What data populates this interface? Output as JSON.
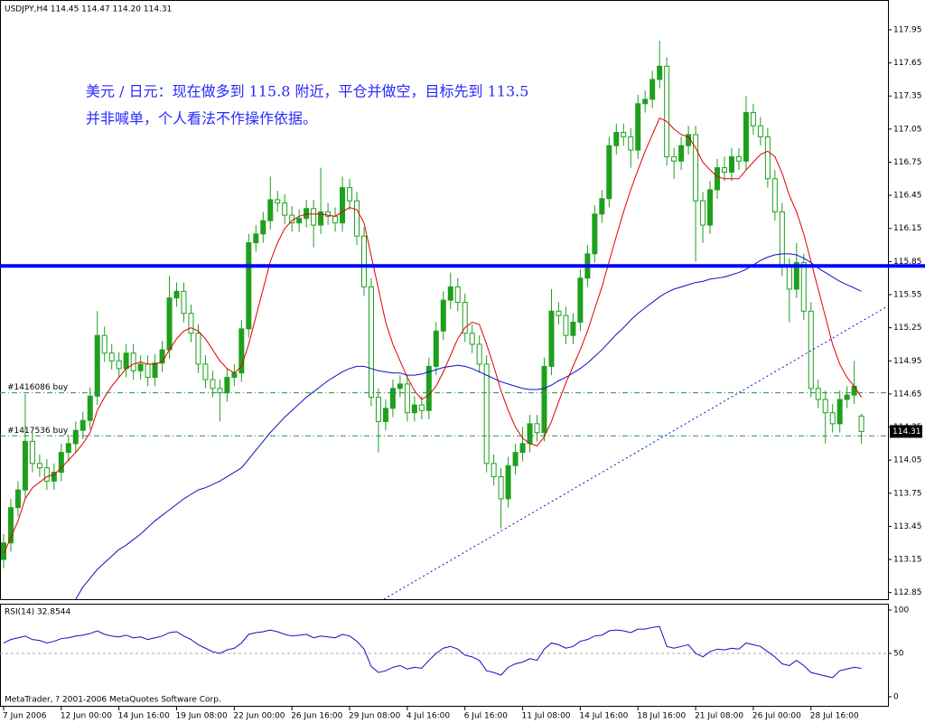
{
  "chart_data": [
    {
      "type": "candlestick",
      "title": "USDJPY,H4  114.45 114.47 114.20 114.31",
      "annotations": [
        "美元 / 日元：现在做多到 115.8 附近，平仓并做空，目标先到 113.5",
        "并非喊单，个人看法不作操作依据。"
      ],
      "categories": [
        "7 Jun 2006",
        null,
        null,
        null,
        null,
        null,
        null,
        null,
        "12 Jun 00:00",
        null,
        null,
        null,
        null,
        null,
        null,
        null,
        "14 Jun 16:00",
        null,
        null,
        null,
        null,
        null,
        null,
        null,
        "19 Jun 08:00",
        null,
        null,
        null,
        null,
        null,
        null,
        null,
        "22 Jun 00:00",
        null,
        null,
        null,
        null,
        null,
        null,
        null,
        "26 Jun 16:00",
        null,
        null,
        null,
        null,
        null,
        null,
        null,
        "29 Jun 08:00",
        null,
        null,
        null,
        null,
        null,
        null,
        null,
        "4 Jul 16:00",
        null,
        null,
        null,
        null,
        null,
        null,
        null,
        "6 Jul 16:00",
        null,
        null,
        null,
        null,
        null,
        null,
        null,
        "11 Jul 08:00",
        null,
        null,
        null,
        null,
        null,
        null,
        null,
        "14 Jul 16:00",
        null,
        null,
        null,
        null,
        null,
        null,
        null,
        "18 Jul 16:00",
        null,
        null,
        null,
        null,
        null,
        null,
        null,
        "21 Jul 08:00",
        null,
        null,
        null,
        null,
        null,
        null,
        null,
        "26 Jul 00:00",
        null,
        null,
        null,
        null,
        null,
        null,
        null,
        "28 Jul 16:00",
        null,
        null,
        null,
        null,
        null,
        null,
        null
      ],
      "open": [
        113.15,
        113.3,
        113.62,
        113.78,
        114.22,
        114.02,
        113.98,
        113.86,
        113.94,
        114.12,
        114.2,
        114.32,
        114.41,
        114.63,
        115.18,
        115.02,
        114.95,
        114.88,
        115.02,
        114.86,
        114.92,
        114.8,
        114.93,
        115.05,
        115.52,
        115.58,
        115.38,
        115.2,
        114.92,
        114.78,
        114.7,
        114.66,
        114.8,
        114.84,
        115.24,
        116.02,
        116.1,
        116.22,
        116.41,
        116.38,
        116.27,
        116.2,
        116.24,
        116.33,
        116.18,
        116.3,
        116.26,
        116.2,
        116.52,
        116.4,
        116.08,
        115.62,
        114.62,
        114.4,
        114.52,
        114.7,
        114.74,
        114.48,
        114.55,
        114.5,
        114.9,
        115.22,
        115.5,
        115.62,
        115.48,
        115.2,
        115.1,
        114.92,
        114.02,
        113.9,
        113.7,
        114.0,
        114.12,
        114.2,
        114.38,
        114.3,
        114.9,
        115.4,
        115.36,
        115.18,
        115.3,
        115.7,
        115.92,
        116.28,
        116.42,
        116.9,
        117.02,
        116.98,
        116.86,
        117.28,
        117.32,
        117.5,
        117.62,
        116.8,
        116.76,
        116.9,
        117.0,
        116.4,
        116.18,
        116.5,
        116.7,
        116.66,
        116.8,
        116.76,
        117.2,
        117.08,
        116.98,
        116.6,
        116.3,
        115.8,
        115.6,
        115.84,
        115.4,
        114.7,
        114.6,
        114.48,
        114.38,
        114.6,
        114.64,
        114.45
      ],
      "high": [
        113.38,
        113.7,
        113.86,
        114.65,
        114.3,
        114.1,
        114.06,
        114.02,
        114.2,
        114.28,
        114.4,
        114.49,
        114.71,
        115.4,
        115.26,
        115.1,
        115.03,
        115.1,
        115.1,
        115.0,
        115.0,
        115.01,
        115.13,
        115.72,
        115.66,
        115.66,
        115.46,
        115.28,
        115.0,
        114.86,
        114.78,
        114.88,
        114.92,
        115.32,
        116.1,
        116.18,
        116.3,
        116.62,
        116.49,
        116.46,
        116.35,
        116.32,
        116.41,
        116.41,
        116.7,
        116.38,
        116.34,
        116.62,
        116.6,
        116.48,
        116.16,
        115.7,
        114.7,
        114.6,
        114.78,
        114.82,
        114.82,
        114.63,
        114.63,
        114.98,
        115.3,
        115.58,
        115.75,
        115.7,
        115.56,
        115.28,
        115.18,
        115.0,
        114.1,
        113.98,
        114.08,
        114.2,
        114.35,
        114.46,
        114.46,
        114.98,
        115.6,
        115.48,
        115.44,
        115.38,
        115.78,
        116.0,
        116.36,
        116.5,
        116.98,
        117.1,
        117.1,
        117.06,
        117.36,
        117.4,
        117.58,
        117.85,
        117.7,
        116.88,
        116.98,
        117.08,
        117.08,
        116.48,
        116.58,
        116.78,
        116.8,
        116.88,
        116.88,
        117.35,
        117.28,
        117.16,
        117.06,
        116.68,
        116.38,
        115.88,
        116.02,
        115.92,
        115.48,
        114.78,
        114.68,
        114.56,
        114.68,
        114.72,
        114.95,
        114.47
      ],
      "low": [
        113.07,
        113.22,
        113.54,
        113.7,
        113.94,
        113.9,
        113.78,
        113.78,
        113.86,
        114.04,
        114.12,
        114.24,
        114.33,
        114.55,
        114.94,
        114.87,
        114.8,
        114.8,
        114.78,
        114.78,
        114.72,
        114.72,
        114.85,
        114.97,
        115.44,
        115.3,
        115.12,
        114.84,
        114.7,
        114.62,
        114.4,
        114.58,
        114.72,
        114.76,
        115.16,
        115.94,
        116.02,
        116.14,
        116.3,
        116.19,
        116.12,
        116.12,
        116.16,
        115.98,
        116.1,
        116.18,
        116.12,
        116.12,
        116.32,
        116.0,
        115.54,
        114.54,
        114.12,
        114.32,
        114.44,
        114.62,
        114.4,
        114.4,
        114.42,
        114.42,
        114.82,
        115.14,
        115.42,
        115.4,
        115.12,
        115.02,
        114.84,
        113.94,
        113.82,
        113.43,
        113.62,
        113.92,
        114.04,
        114.12,
        114.22,
        114.22,
        114.82,
        115.28,
        115.1,
        115.1,
        115.22,
        115.62,
        115.84,
        116.2,
        116.34,
        116.82,
        116.9,
        116.7,
        116.78,
        117.2,
        117.24,
        117.42,
        116.72,
        116.6,
        116.68,
        116.82,
        115.85,
        116.02,
        116.1,
        116.42,
        116.58,
        116.58,
        116.68,
        116.68,
        117.0,
        116.9,
        116.52,
        116.22,
        115.72,
        115.3,
        115.52,
        115.32,
        114.62,
        114.52,
        114.2,
        114.3,
        114.3,
        114.52,
        114.56,
        114.2
      ],
      "close": [
        113.3,
        113.62,
        113.78,
        114.22,
        114.02,
        113.98,
        113.86,
        113.94,
        114.12,
        114.2,
        114.32,
        114.41,
        114.63,
        115.18,
        115.02,
        114.95,
        114.88,
        115.02,
        114.86,
        114.92,
        114.8,
        114.93,
        115.05,
        115.52,
        115.58,
        115.38,
        115.2,
        114.92,
        114.78,
        114.7,
        114.66,
        114.8,
        114.84,
        115.24,
        116.02,
        116.1,
        116.22,
        116.41,
        116.38,
        116.27,
        116.2,
        116.24,
        116.33,
        116.18,
        116.3,
        116.26,
        116.2,
        116.52,
        116.4,
        116.08,
        115.62,
        114.62,
        114.4,
        114.52,
        114.7,
        114.74,
        114.48,
        114.55,
        114.5,
        114.9,
        115.22,
        115.5,
        115.62,
        115.48,
        115.2,
        115.1,
        114.92,
        114.02,
        113.9,
        113.7,
        114.0,
        114.12,
        114.2,
        114.38,
        114.3,
        114.9,
        115.4,
        115.36,
        115.18,
        115.3,
        115.7,
        115.92,
        116.28,
        116.42,
        116.9,
        117.02,
        116.98,
        116.86,
        117.28,
        117.32,
        117.5,
        117.62,
        116.8,
        116.76,
        116.9,
        117.0,
        116.4,
        116.18,
        116.5,
        116.7,
        116.66,
        116.8,
        116.76,
        117.2,
        117.08,
        116.98,
        116.6,
        116.3,
        115.8,
        115.6,
        115.84,
        115.4,
        114.7,
        114.6,
        114.48,
        114.38,
        114.6,
        114.64,
        114.72,
        114.31
      ],
      "color": "#1ea01e",
      "lines": [
        {
          "color": "#e00000",
          "values": [
            113.2,
            113.35,
            113.5,
            113.7,
            113.8,
            113.85,
            113.9,
            113.92,
            113.98,
            114.05,
            114.12,
            114.2,
            114.3,
            114.5,
            114.62,
            114.72,
            114.8,
            114.88,
            114.92,
            114.94,
            114.92,
            114.92,
            114.94,
            115.05,
            115.15,
            115.22,
            115.25,
            115.22,
            115.15,
            115.05,
            114.95,
            114.88,
            114.84,
            114.9,
            115.1,
            115.35,
            115.6,
            115.85,
            116.02,
            116.15,
            116.22,
            116.26,
            116.28,
            116.28,
            116.28,
            116.27,
            116.26,
            116.3,
            116.34,
            116.32,
            116.2,
            115.9,
            115.6,
            115.3,
            115.1,
            114.95,
            114.8,
            114.68,
            114.6,
            114.64,
            114.72,
            114.85,
            115.0,
            115.15,
            115.25,
            115.3,
            115.28,
            115.1,
            114.9,
            114.68,
            114.5,
            114.35,
            114.25,
            114.2,
            114.18,
            114.26,
            114.4,
            114.58,
            114.75,
            114.9,
            115.05,
            115.22,
            115.42,
            115.62,
            115.85,
            116.08,
            116.3,
            116.5,
            116.68,
            116.85,
            117.0,
            117.15,
            117.12,
            117.05,
            117.0,
            116.98,
            116.88,
            116.75,
            116.68,
            116.62,
            116.6,
            116.6,
            116.6,
            116.68,
            116.75,
            116.82,
            116.85,
            116.8,
            116.65,
            116.45,
            116.3,
            116.1,
            115.85,
            115.6,
            115.35,
            115.1,
            114.92,
            114.8,
            114.72,
            114.62
          ]
        },
        {
          "color": "#1010c0",
          "values": [
            null,
            null,
            null,
            null,
            null,
            null,
            null,
            null,
            null,
            null,
            112.79,
            112.9,
            112.98,
            113.06,
            113.12,
            113.18,
            113.24,
            113.28,
            113.33,
            113.38,
            113.44,
            113.5,
            113.55,
            113.6,
            113.65,
            113.7,
            113.74,
            113.78,
            113.8,
            113.83,
            113.86,
            113.9,
            113.94,
            113.98,
            114.06,
            114.14,
            114.22,
            114.3,
            114.37,
            114.44,
            114.5,
            114.56,
            114.62,
            114.67,
            114.72,
            114.77,
            114.81,
            114.85,
            114.88,
            114.9,
            114.9,
            114.88,
            114.86,
            114.85,
            114.84,
            114.84,
            114.82,
            114.82,
            114.83,
            114.85,
            114.87,
            114.89,
            114.9,
            114.91,
            114.9,
            114.88,
            114.85,
            114.82,
            114.79,
            114.76,
            114.74,
            114.72,
            114.7,
            114.69,
            114.69,
            114.7,
            114.73,
            114.77,
            114.8,
            114.84,
            114.88,
            114.93,
            114.99,
            115.05,
            115.12,
            115.19,
            115.25,
            115.32,
            115.38,
            115.43,
            115.48,
            115.53,
            115.57,
            115.6,
            115.62,
            115.64,
            115.66,
            115.67,
            115.69,
            115.7,
            115.71,
            115.73,
            115.75,
            115.78,
            115.82,
            115.86,
            115.89,
            115.91,
            115.92,
            115.92,
            115.91,
            115.88,
            115.84,
            115.79,
            115.75,
            115.71,
            115.67,
            115.64,
            115.61,
            115.58
          ]
        }
      ],
      "horizontal_lines": [
        {
          "value": 115.81,
          "color": "#0000ff"
        }
      ],
      "orders": [
        {
          "value": 114.66,
          "label": "#1416086 buy"
        },
        {
          "value": 114.27,
          "label": "#1417536 buy"
        }
      ],
      "trendline": {
        "x": [
          52.75,
          122.5
        ],
        "y": [
          112.79,
          115.44
        ],
        "color": "#1010c0"
      },
      "current_price": 114.31,
      "ylim": [
        112.79,
        118.22
      ],
      "yticks": [
        112.85,
        113.15,
        113.45,
        113.75,
        114.05,
        114.35,
        114.65,
        114.95,
        115.25,
        115.55,
        115.85,
        116.15,
        116.45,
        116.75,
        117.05,
        117.35,
        117.65,
        117.95
      ]
    },
    {
      "type": "line",
      "title": "RSI(14) 32.8544",
      "footer": "MetaTrader, ? 2001-2006 MetaQuotes Software Corp.",
      "color": "#1010c0",
      "values": [
        62,
        66,
        68,
        70,
        66,
        65,
        62,
        64,
        67,
        68,
        70,
        71,
        73,
        76,
        72,
        70,
        69,
        71,
        68,
        69,
        66,
        68,
        70,
        74,
        75,
        70,
        66,
        60,
        56,
        52,
        50,
        54,
        56,
        62,
        72,
        74,
        75,
        77,
        75,
        72,
        70,
        71,
        72,
        68,
        70,
        69,
        68,
        72,
        70,
        64,
        55,
        35,
        28,
        30,
        34,
        36,
        32,
        34,
        33,
        42,
        50,
        56,
        58,
        55,
        48,
        46,
        42,
        30,
        28,
        25,
        34,
        38,
        40,
        44,
        42,
        55,
        62,
        60,
        56,
        58,
        64,
        66,
        70,
        71,
        76,
        77,
        76,
        74,
        78,
        78,
        80,
        81,
        58,
        56,
        58,
        60,
        50,
        46,
        52,
        55,
        54,
        56,
        55,
        62,
        60,
        58,
        52,
        46,
        38,
        36,
        42,
        36,
        28,
        26,
        24,
        22,
        30,
        32,
        34,
        32.8544
      ],
      "ylim": [
        0,
        100
      ],
      "yticks": [
        100,
        50,
        0
      ],
      "levels": [
        50
      ]
    }
  ]
}
